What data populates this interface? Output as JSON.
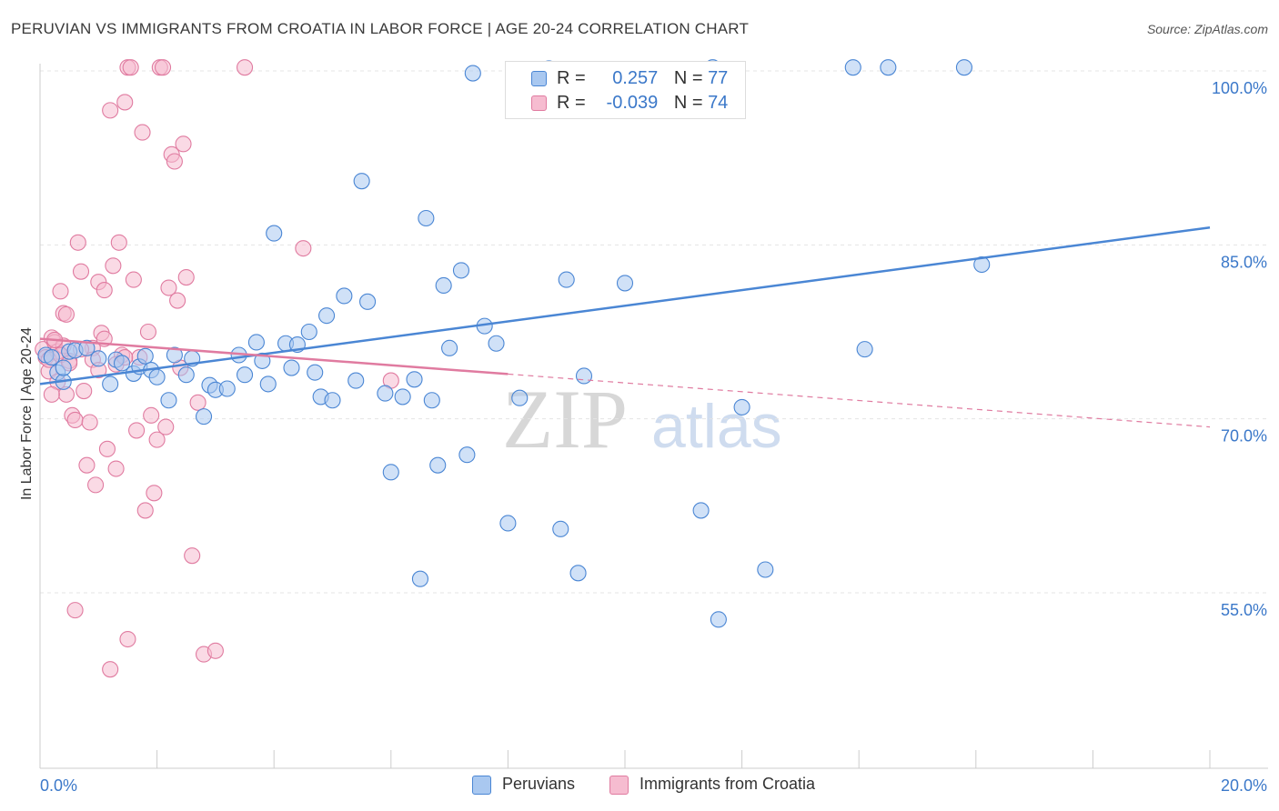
{
  "chart_data": {
    "type": "scatter",
    "title": "PERUVIAN VS IMMIGRANTS FROM CROATIA IN LABOR FORCE | AGE 20-24 CORRELATION CHART",
    "source": "Source: ZipAtlas.com",
    "ylabel": "In Labor Force | Age 20-24",
    "x_axis": {
      "min": 0,
      "max": 20,
      "tick_labels": [
        "0.0%",
        "20.0%"
      ]
    },
    "y_axis": {
      "min": 40,
      "max": 102,
      "ticks": [
        55,
        70,
        85,
        100
      ],
      "tick_labels": [
        "55.0%",
        "70.0%",
        "85.0%",
        "100.0%"
      ]
    },
    "grid": "horizontal dashed",
    "watermark": {
      "zip": "ZIP",
      "atlas": "atlas"
    },
    "stats": [
      {
        "r_label": "R =",
        "r_value": "0.257",
        "n_label": "N =",
        "n_value": "77"
      },
      {
        "r_label": "R =",
        "r_value": "-0.039",
        "n_label": "N =",
        "n_value": "74"
      }
    ],
    "series": [
      {
        "name": "Peruvians",
        "color": "#4a86d4",
        "fill": "#a9c8f0",
        "trend": {
          "x0": 0,
          "y0": 73.0,
          "x1": 20,
          "y1": 86.5,
          "solid_until": 20
        },
        "points": [
          [
            0.1,
            75.5
          ],
          [
            0.2,
            75.3
          ],
          [
            0.3,
            74.0
          ],
          [
            0.4,
            73.2
          ],
          [
            0.5,
            75.8
          ],
          [
            0.6,
            75.9
          ],
          [
            0.8,
            76.1
          ],
          [
            1.0,
            75.2
          ],
          [
            1.2,
            73.0
          ],
          [
            1.3,
            75.1
          ],
          [
            1.4,
            74.8
          ],
          [
            1.6,
            73.9
          ],
          [
            1.7,
            74.5
          ],
          [
            1.8,
            75.4
          ],
          [
            1.9,
            74.2
          ],
          [
            2.0,
            73.6
          ],
          [
            2.2,
            71.6
          ],
          [
            2.3,
            75.5
          ],
          [
            2.5,
            73.8
          ],
          [
            2.6,
            75.2
          ],
          [
            2.8,
            70.2
          ],
          [
            2.9,
            72.9
          ],
          [
            3.0,
            72.5
          ],
          [
            3.2,
            72.6
          ],
          [
            3.4,
            75.5
          ],
          [
            3.5,
            73.8
          ],
          [
            3.7,
            76.6
          ],
          [
            3.8,
            75.0
          ],
          [
            3.9,
            73.0
          ],
          [
            4.0,
            86.0
          ],
          [
            4.2,
            76.5
          ],
          [
            4.3,
            74.4
          ],
          [
            4.4,
            76.4
          ],
          [
            4.6,
            77.5
          ],
          [
            4.7,
            74.0
          ],
          [
            4.8,
            71.9
          ],
          [
            4.9,
            78.9
          ],
          [
            5.0,
            71.6
          ],
          [
            5.2,
            80.6
          ],
          [
            5.4,
            73.3
          ],
          [
            5.5,
            90.5
          ],
          [
            5.6,
            80.1
          ],
          [
            5.9,
            72.2
          ],
          [
            6.0,
            65.4
          ],
          [
            6.2,
            71.9
          ],
          [
            6.4,
            73.4
          ],
          [
            6.5,
            56.2
          ],
          [
            6.6,
            87.3
          ],
          [
            6.7,
            71.6
          ],
          [
            6.8,
            66.0
          ],
          [
            6.9,
            81.5
          ],
          [
            7.0,
            76.1
          ],
          [
            7.2,
            82.8
          ],
          [
            7.3,
            66.9
          ],
          [
            7.4,
            99.8
          ],
          [
            7.6,
            78.0
          ],
          [
            7.8,
            76.5
          ],
          [
            8.0,
            61.0
          ],
          [
            8.2,
            71.8
          ],
          [
            8.5,
            100.0
          ],
          [
            8.7,
            100.2
          ],
          [
            8.9,
            60.5
          ],
          [
            9.0,
            82.0
          ],
          [
            9.2,
            56.7
          ],
          [
            9.3,
            73.7
          ],
          [
            10.0,
            81.7
          ],
          [
            11.5,
            100.3
          ],
          [
            11.3,
            62.1
          ],
          [
            11.6,
            52.7
          ],
          [
            12.0,
            71.0
          ],
          [
            12.4,
            57.0
          ],
          [
            13.9,
            100.3
          ],
          [
            14.1,
            76.0
          ],
          [
            14.5,
            100.3
          ],
          [
            15.8,
            100.3
          ],
          [
            16.1,
            83.3
          ],
          [
            0.4,
            74.4
          ]
        ]
      },
      {
        "name": "Immigrants from Croatia",
        "color": "#e07ba0",
        "fill": "#f6bcd0",
        "trend": {
          "x0": 0,
          "y0": 76.9,
          "x1": 20,
          "y1": 69.3,
          "solid_until": 8
        },
        "points": [
          [
            0.05,
            76.0
          ],
          [
            0.1,
            75.3
          ],
          [
            0.15,
            74.1
          ],
          [
            0.2,
            77.0
          ],
          [
            0.25,
            76.6
          ],
          [
            0.3,
            73.2
          ],
          [
            0.35,
            81.0
          ],
          [
            0.4,
            79.1
          ],
          [
            0.45,
            72.1
          ],
          [
            0.5,
            75.0
          ],
          [
            0.55,
            70.3
          ],
          [
            0.6,
            69.9
          ],
          [
            0.65,
            85.2
          ],
          [
            0.7,
            82.7
          ],
          [
            0.75,
            72.4
          ],
          [
            0.8,
            66.0
          ],
          [
            0.85,
            69.7
          ],
          [
            0.9,
            76.1
          ],
          [
            0.95,
            64.3
          ],
          [
            1.0,
            81.8
          ],
          [
            1.05,
            77.4
          ],
          [
            1.1,
            81.1
          ],
          [
            1.15,
            67.4
          ],
          [
            1.2,
            96.6
          ],
          [
            1.25,
            83.2
          ],
          [
            1.3,
            65.7
          ],
          [
            1.35,
            85.2
          ],
          [
            1.4,
            75.5
          ],
          [
            1.45,
            97.3
          ],
          [
            1.5,
            100.3
          ],
          [
            1.55,
            100.3
          ],
          [
            1.6,
            82.0
          ],
          [
            1.65,
            69.0
          ],
          [
            1.7,
            75.3
          ],
          [
            1.75,
            94.7
          ],
          [
            1.8,
            62.1
          ],
          [
            1.85,
            77.5
          ],
          [
            1.9,
            70.3
          ],
          [
            1.95,
            63.6
          ],
          [
            2.0,
            68.2
          ],
          [
            2.05,
            100.3
          ],
          [
            2.1,
            100.3
          ],
          [
            2.15,
            69.3
          ],
          [
            2.2,
            81.3
          ],
          [
            2.25,
            92.8
          ],
          [
            2.3,
            92.2
          ],
          [
            2.35,
            80.2
          ],
          [
            2.4,
            74.4
          ],
          [
            2.45,
            93.7
          ],
          [
            2.5,
            82.2
          ],
          [
            2.6,
            58.2
          ],
          [
            2.7,
            71.4
          ],
          [
            2.8,
            49.7
          ],
          [
            3.0,
            50.0
          ],
          [
            3.5,
            100.3
          ],
          [
            4.5,
            84.7
          ],
          [
            6.0,
            73.3
          ],
          [
            0.2,
            72.1
          ],
          [
            0.6,
            53.5
          ],
          [
            1.2,
            48.4
          ],
          [
            1.5,
            51.0
          ],
          [
            0.3,
            75.8
          ],
          [
            0.4,
            76.3
          ],
          [
            0.45,
            79.0
          ],
          [
            0.9,
            75.1
          ],
          [
            1.0,
            74.2
          ],
          [
            1.1,
            76.9
          ],
          [
            0.15,
            75.1
          ],
          [
            0.25,
            76.8
          ],
          [
            0.35,
            75.5
          ],
          [
            0.5,
            74.8
          ],
          [
            0.7,
            76.0
          ],
          [
            1.3,
            74.7
          ],
          [
            1.45,
            75.3
          ]
        ]
      }
    ]
  }
}
